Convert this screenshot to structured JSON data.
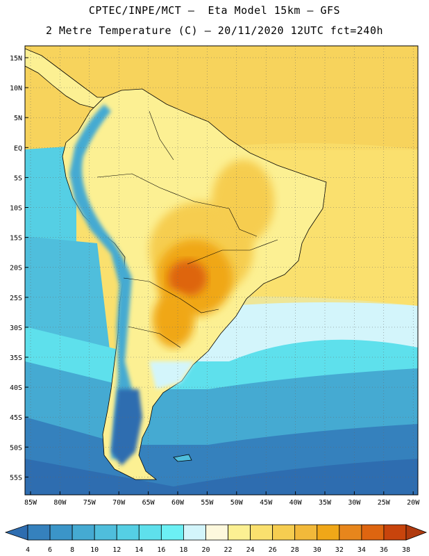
{
  "title_line1": "CPTEC/INPE/MCT –  Eta Model 15km – GFS",
  "title_line2": "2 Metre Temperature (C) – 20/11/2020 12UTC fct=240h",
  "lat_labels": [
    "15N",
    "10N",
    "5N",
    "EQ",
    "5S",
    "10S",
    "15S",
    "20S",
    "25S",
    "30S",
    "35S",
    "40S",
    "45S",
    "50S",
    "55S"
  ],
  "lon_labels": [
    "85W",
    "80W",
    "75W",
    "70W",
    "65W",
    "60W",
    "55W",
    "50W",
    "45W",
    "40W",
    "35W",
    "30W",
    "25W",
    "20W"
  ],
  "colorbar": {
    "labels": [
      "4",
      "6",
      "8",
      "10",
      "12",
      "14",
      "16",
      "18",
      "20",
      "22",
      "24",
      "26",
      "28",
      "30",
      "32",
      "34",
      "36",
      "38"
    ],
    "colors": [
      "#2e6db0",
      "#3581bd",
      "#3b95c8",
      "#45aad2",
      "#4fbedc",
      "#55cfe4",
      "#5ee0ec",
      "#6cf0f4",
      "#d3f5fb",
      "#fdf8dd",
      "#fcf093",
      "#fae06e",
      "#f6cd50",
      "#f2b93a",
      "#f0a718",
      "#e7861c",
      "#de6510",
      "#c8440c",
      "#b03a0e"
    ]
  },
  "legend": {
    "ocean_cold": "#2a62ad",
    "ocean_cool": "#4fbedc",
    "ocean_warm": "#fae06e",
    "land_hot": "#e18a2a"
  }
}
